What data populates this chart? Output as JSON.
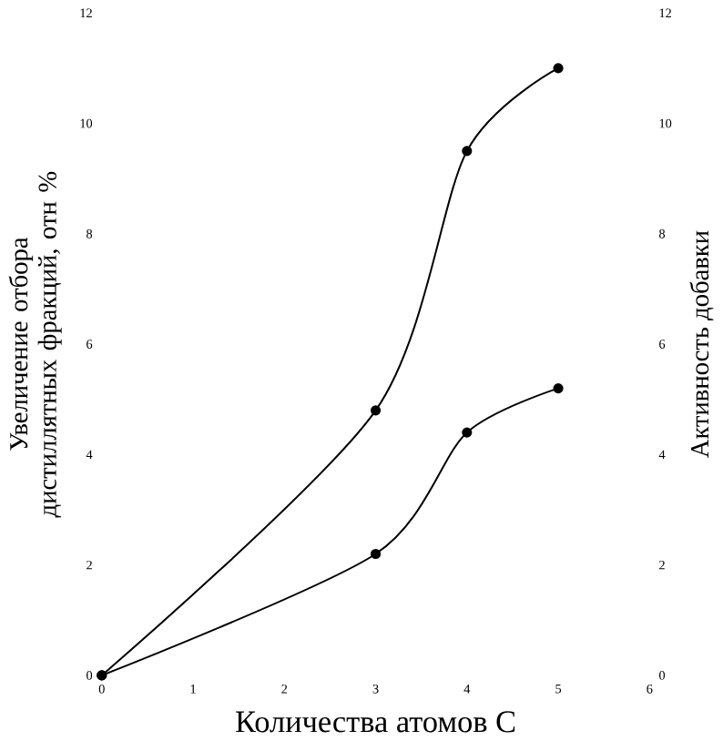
{
  "chart_data": {
    "type": "line",
    "xlabel": "Количества атомов C",
    "ylabel": "Увеличение отбора дистиллятных фракций, отн %",
    "y2label": "Активность добавки",
    "xlim": [
      0,
      6
    ],
    "xticks": [
      0,
      1,
      2,
      3,
      4,
      5,
      6
    ],
    "ylim": [
      0,
      12
    ],
    "yticks": [
      0,
      2,
      4,
      6,
      8,
      10,
      12
    ],
    "y2lim": [
      0,
      12
    ],
    "y2ticks": [
      0,
      2,
      4,
      6,
      8,
      10,
      12
    ],
    "marker": "circle",
    "line_style": "solid",
    "series": [
      {
        "color": "#000000",
        "x": [
          0,
          3,
          4,
          5
        ],
        "values": [
          0,
          4.8,
          9.5,
          11
        ]
      },
      {
        "color": "#000000",
        "axis": "y2",
        "x": [
          0,
          3,
          4,
          5
        ],
        "values": [
          0,
          2.2,
          4.4,
          5.2
        ]
      }
    ]
  }
}
